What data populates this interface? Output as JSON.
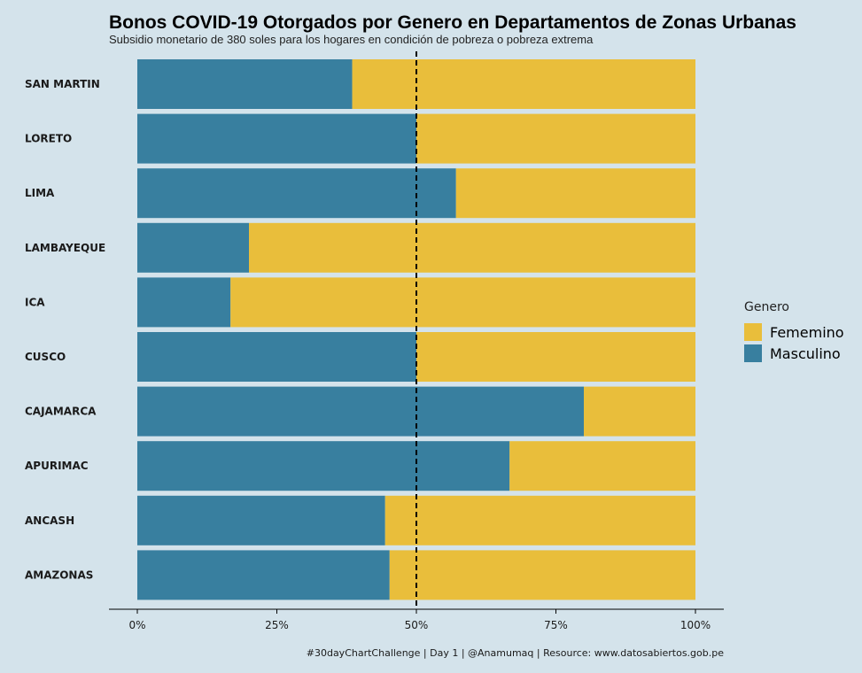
{
  "chart_data": {
    "type": "bar",
    "orientation": "horizontal",
    "stacked": true,
    "percent_stacked": true,
    "title": "Bonos COVID-19 Otorgados por Genero en Departamentos de Zonas Urbanas",
    "subtitle": "Subsidio monetario de 380 soles para los hogares en condición de pobreza o pobreza extrema",
    "categories": [
      "SAN MARTIN",
      "LORETO",
      "LIMA",
      "LAMBAYEQUE",
      "ICA",
      "CUSCO",
      "CAJAMARCA",
      "APURIMAC",
      "ANCASH",
      "AMAZONAS"
    ],
    "series": [
      {
        "name": "Masculino",
        "color": "#387f9f",
        "values": [
          0.385,
          0.5,
          0.571,
          0.2,
          0.167,
          0.5,
          0.8,
          0.667,
          0.444,
          0.452
        ]
      },
      {
        "name": "Fememino",
        "color": "#e9be3b",
        "values": [
          0.615,
          0.5,
          0.429,
          0.8,
          0.833,
          0.5,
          0.2,
          0.333,
          0.556,
          0.548
        ]
      }
    ],
    "x_ticks": [
      "0%",
      "25%",
      "50%",
      "75%",
      "100%"
    ],
    "xlim": [
      0,
      1
    ],
    "reference_line": {
      "x": 0.5,
      "style": "dashed",
      "color": "#000000"
    },
    "legend": {
      "title": "Genero",
      "position": "right"
    },
    "grid": false,
    "caption": "#30dayChartChallenge | Day 1 | @Anamumaq | Resource: www.datosabiertos.gob.pe"
  }
}
